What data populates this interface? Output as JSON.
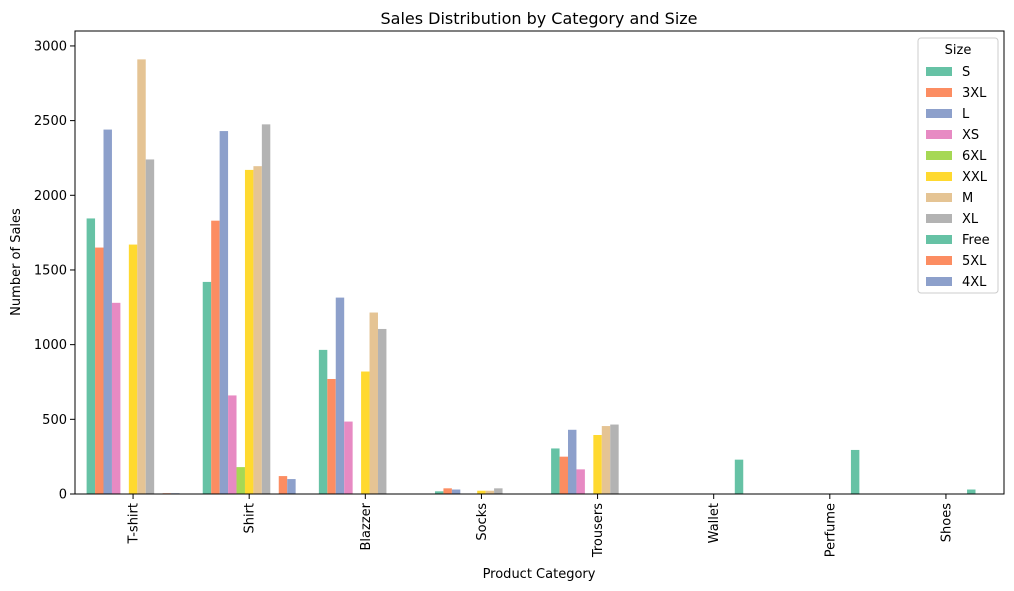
{
  "chart_data": {
    "type": "bar",
    "title": "Sales Distribution by Category and Size",
    "xlabel": "Product Category",
    "ylabel": "Number of Sales",
    "ylim": [
      0,
      3100
    ],
    "yticks": [
      0,
      500,
      1000,
      1500,
      2000,
      2500,
      3000
    ],
    "grid": false,
    "legend": {
      "title": "Size",
      "placement": "top-right"
    },
    "categories": [
      "T-shirt",
      "Shirt",
      "Blazzer",
      "Socks",
      "Trousers",
      "Wallet",
      "Perfume",
      "Shoes"
    ],
    "series": [
      {
        "name": "S",
        "color": "#66c2a5",
        "values": [
          1845,
          1420,
          965,
          18,
          305,
          null,
          null,
          null
        ]
      },
      {
        "name": "3XL",
        "color": "#fc8d62",
        "values": [
          1650,
          1830,
          770,
          38,
          250,
          null,
          null,
          null
        ]
      },
      {
        "name": "L",
        "color": "#8da0cb",
        "values": [
          2440,
          2430,
          1315,
          30,
          430,
          null,
          null,
          null
        ]
      },
      {
        "name": "XS",
        "color": "#e78ac3",
        "values": [
          1280,
          660,
          485,
          null,
          165,
          null,
          null,
          null
        ]
      },
      {
        "name": "6XL",
        "color": "#a6d854",
        "values": [
          null,
          180,
          null,
          null,
          null,
          null,
          null,
          null
        ]
      },
      {
        "name": "XXL",
        "color": "#ffd92f",
        "values": [
          1670,
          2170,
          820,
          22,
          395,
          null,
          null,
          null
        ]
      },
      {
        "name": "M",
        "color": "#e5c494",
        "values": [
          2910,
          2195,
          1215,
          22,
          455,
          null,
          null,
          null
        ]
      },
      {
        "name": "XL",
        "color": "#b3b3b3",
        "values": [
          2240,
          2475,
          1105,
          38,
          465,
          null,
          null,
          null
        ]
      },
      {
        "name": "Free",
        "color": "#66c2a5",
        "values": [
          null,
          null,
          null,
          null,
          null,
          230,
          295,
          30
        ]
      },
      {
        "name": "5XL",
        "color": "#fc8d62",
        "values": [
          5,
          120,
          null,
          null,
          null,
          null,
          null,
          null
        ]
      },
      {
        "name": "4XL",
        "color": "#8da0cb",
        "values": [
          5,
          100,
          null,
          null,
          null,
          null,
          null,
          null
        ]
      }
    ]
  }
}
